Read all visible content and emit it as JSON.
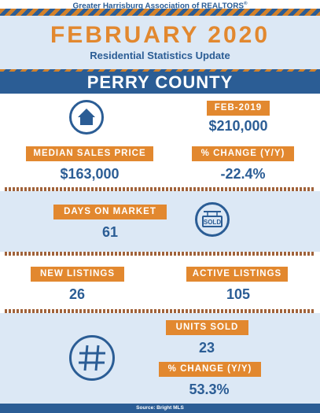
{
  "header": {
    "org": "Greater Harrisburg Association of REALTORS",
    "reg_mark": "®",
    "title": "FEBRUARY 2020",
    "subtitle": "Residential Statistics Update"
  },
  "county": "PERRY COUNTY",
  "stats": {
    "prior_period_label": "FEB-2019",
    "prior_price": "$210,000",
    "median_label": "MEDIAN SALES PRICE",
    "median_value": "$163,000",
    "price_change_label": "% CHANGE (Y/Y)",
    "price_change_value": "-22.4%",
    "dom_label": "DAYS ON MARKET",
    "dom_value": "61",
    "new_listings_label": "NEW LISTINGS",
    "new_listings_value": "26",
    "active_listings_label": "ACTIVE LISTINGS",
    "active_listings_value": "105",
    "units_sold_label": "UNITS SOLD",
    "units_sold_value": "23",
    "units_change_label": "% CHANGE (Y/Y)",
    "units_change_value": "53.3%"
  },
  "sold_sign_text": "SOLD",
  "source": "Source: Bright MLS",
  "icons": [
    "house-icon",
    "sold-sign-icon",
    "hashtag-icon"
  ],
  "colors": {
    "navy": "#2b5d95",
    "orange": "#e2882f",
    "light_blue": "#dce8f5"
  }
}
